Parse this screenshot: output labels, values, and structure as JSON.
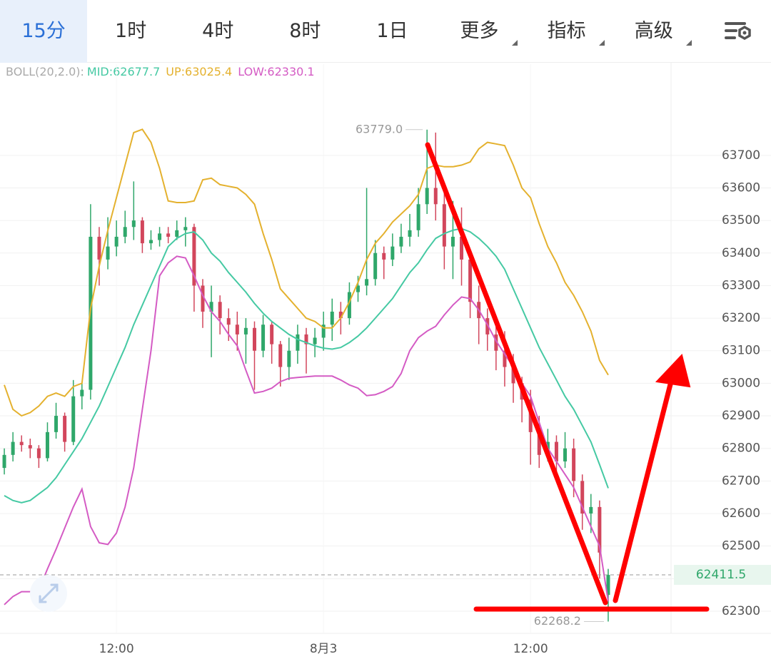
{
  "tabs": [
    "15分",
    "1时",
    "4时",
    "8时",
    "1日",
    "更多",
    "指标",
    "高级"
  ],
  "chart_data": {
    "type": "candlestick",
    "indicator_label": "BOLL(20,2.0):",
    "categories": [
      null,
      null,
      null,
      null,
      null,
      null,
      null,
      null,
      null,
      null,
      null,
      null,
      null,
      "12:00",
      null,
      null,
      null,
      null,
      null,
      null,
      null,
      null,
      null,
      null,
      null,
      null,
      null,
      null,
      null,
      null,
      null,
      null,
      null,
      null,
      null,
      null,
      null,
      "8月3",
      null,
      null,
      null,
      null,
      null,
      null,
      null,
      null,
      null,
      null,
      null,
      null,
      null,
      null,
      null,
      null,
      null,
      null,
      null,
      null,
      null,
      null,
      null,
      "12:00",
      null,
      null,
      null,
      null,
      null,
      null,
      null,
      null,
      null
    ],
    "open": [
      62740,
      62780,
      62820,
      62810,
      62800,
      62770,
      62850,
      62900,
      62820,
      62960,
      62980,
      63450,
      63380,
      63420,
      63450,
      63480,
      63500,
      63430,
      63440,
      63460,
      63450,
      63470,
      63480,
      63300,
      63220,
      63250,
      63200,
      63180,
      63150,
      63170,
      63100,
      63180,
      63120,
      63050,
      63100,
      63150,
      63120,
      63140,
      63180,
      63220,
      63200,
      63280,
      63300,
      63320,
      63400,
      63380,
      63420,
      63450,
      63470,
      63550,
      63600,
      63550,
      63420,
      63450,
      63380,
      63250,
      63200,
      63150,
      63100,
      63050,
      63000,
      62950,
      62850,
      62780,
      62820,
      62760,
      62800,
      62700,
      62600,
      62620,
      62350
    ],
    "high": [
      62800,
      62850,
      62840,
      62830,
      62810,
      62880,
      62940,
      62910,
      63010,
      63000,
      63550,
      63480,
      63510,
      63500,
      63530,
      63620,
      63510,
      63470,
      63480,
      63480,
      63500,
      63510,
      63490,
      63320,
      63300,
      63270,
      63230,
      63220,
      63200,
      63190,
      63210,
      63190,
      63130,
      63140,
      63180,
      63170,
      63170,
      63220,
      63260,
      63250,
      63310,
      63330,
      63600,
      63440,
      63420,
      63460,
      63490,
      63520,
      63600,
      63779,
      63770,
      63600,
      63560,
      63540,
      63400,
      63300,
      63230,
      63200,
      63160,
      63090,
      63020,
      62980,
      62900,
      62860,
      62840,
      62850,
      62830,
      62720,
      62660,
      62640,
      62430
    ],
    "low": [
      62720,
      62760,
      62790,
      62770,
      62740,
      62760,
      62830,
      62790,
      62810,
      62920,
      62950,
      63300,
      63350,
      63390,
      63430,
      63440,
      63400,
      63410,
      63420,
      63430,
      63440,
      63420,
      63220,
      63170,
      63080,
      63150,
      63130,
      63100,
      63060,
      62980,
      63080,
      63060,
      62990,
      63010,
      63060,
      63030,
      63080,
      63100,
      63130,
      63150,
      63180,
      63250,
      63270,
      63300,
      63320,
      63360,
      63400,
      63420,
      63450,
      63520,
      63500,
      63350,
      63320,
      63300,
      63200,
      63120,
      63100,
      63040,
      62990,
      62940,
      62880,
      62750,
      62740,
      62760,
      62720,
      62740,
      62650,
      62550,
      62540,
      62400,
      62268.2
    ],
    "close": [
      62780,
      62820,
      62810,
      62800,
      62770,
      62850,
      62900,
      62820,
      62960,
      62980,
      63450,
      63380,
      63420,
      63450,
      63480,
      63500,
      63430,
      63440,
      63460,
      63450,
      63470,
      63480,
      63300,
      63220,
      63250,
      63200,
      63180,
      63150,
      63170,
      63100,
      63180,
      63120,
      63050,
      63100,
      63150,
      63120,
      63140,
      63180,
      63220,
      63200,
      63280,
      63300,
      63320,
      63400,
      63380,
      63420,
      63450,
      63470,
      63550,
      63600,
      63550,
      63420,
      63450,
      63380,
      63250,
      63200,
      63150,
      63100,
      63050,
      63000,
      62950,
      62850,
      62780,
      62820,
      62760,
      62800,
      62700,
      62600,
      62620,
      62480,
      62411.5
    ],
    "up_color": "#2fa76a",
    "down_color": "#d2465c",
    "series": [
      {
        "name": "MID:62677.7",
        "color": "#45c9a3",
        "values": [
          62655,
          62640,
          62633,
          62640,
          62660,
          62680,
          62710,
          62750,
          62790,
          62830,
          62880,
          62930,
          62990,
          63050,
          63110,
          63180,
          63240,
          63300,
          63360,
          63420,
          63445,
          63460,
          63465,
          63440,
          63400,
          63375,
          63340,
          63310,
          63280,
          63245,
          63215,
          63190,
          63170,
          63150,
          63135,
          63125,
          63115,
          63108,
          63105,
          63110,
          63125,
          63145,
          63170,
          63200,
          63230,
          63260,
          63300,
          63340,
          63370,
          63410,
          63445,
          63460,
          63470,
          63475,
          63465,
          63445,
          63420,
          63390,
          63350,
          63290,
          63230,
          63170,
          63110,
          63060,
          63010,
          62960,
          62920,
          62870,
          62820,
          62750,
          62677.7
        ]
      },
      {
        "name": "UP:63025.4",
        "color": "#e4b12e",
        "values": [
          62995,
          62920,
          62900,
          62910,
          62930,
          62960,
          62970,
          62960,
          62990,
          63000,
          63230,
          63360,
          63470,
          63570,
          63670,
          63770,
          63780,
          63740,
          63660,
          63560,
          63555,
          63555,
          63560,
          63625,
          63630,
          63610,
          63605,
          63600,
          63580,
          63550,
          63460,
          63380,
          63290,
          63260,
          63230,
          63200,
          63190,
          63170,
          63170,
          63200,
          63250,
          63310,
          63380,
          63430,
          63460,
          63495,
          63520,
          63545,
          63580,
          63660,
          63670,
          63665,
          63665,
          63670,
          63680,
          63720,
          63740,
          63735,
          63730,
          63670,
          63600,
          63570,
          63490,
          63420,
          63370,
          63310,
          63270,
          63220,
          63160,
          63070,
          63025.4
        ]
      },
      {
        "name": "LOW:62330.1",
        "color": "#d45bc4",
        "values": [
          62320,
          62345,
          62360,
          62360,
          62365,
          62430,
          62490,
          62555,
          62620,
          62675,
          62560,
          62510,
          62505,
          62540,
          62620,
          62740,
          62920,
          63100,
          63330,
          63370,
          63390,
          63385,
          63330,
          63270,
          63220,
          63190,
          63150,
          63115,
          63040,
          62970,
          62975,
          62985,
          63005,
          63015,
          63018,
          63020,
          63022,
          63022,
          63022,
          63010,
          62995,
          62985,
          62962,
          62965,
          62975,
          62990,
          63030,
          63100,
          63140,
          63160,
          63175,
          63210,
          63240,
          63265,
          63260,
          63225,
          63180,
          63130,
          63090,
          63050,
          63000,
          62960,
          62880,
          62800,
          62760,
          62720,
          62680,
          62620,
          62560,
          62500,
          62330.1
        ]
      }
    ],
    "ylim": [
      62232,
      63980
    ],
    "yticks": [
      62300,
      62400,
      62500,
      62600,
      62700,
      62800,
      62900,
      63000,
      63100,
      63200,
      63300,
      63400,
      63500,
      63600,
      63700
    ],
    "grid": true,
    "last_price": 62411.5,
    "high_label": "63779.0",
    "low_label": "62268.2"
  }
}
